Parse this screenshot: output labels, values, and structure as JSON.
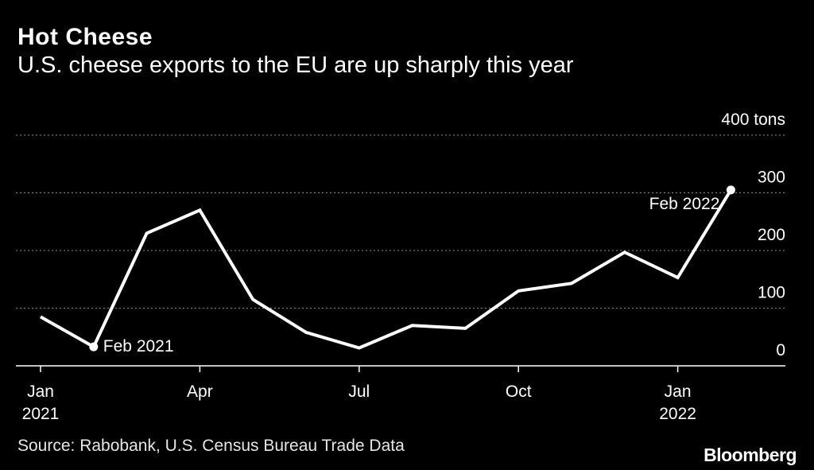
{
  "header": {
    "title": "Hot Cheese",
    "subtitle": "U.S. cheese exports to the EU are up sharply this year"
  },
  "footer": {
    "source": "Source: Rabobank, U.S. Census Bureau Trade Data",
    "brand": "Bloomberg"
  },
  "colors": {
    "background": "#000000",
    "line": "#ffffff",
    "grid": "#8c8c8c"
  },
  "chart_data": {
    "type": "line",
    "title": "Hot Cheese",
    "subtitle": "U.S. cheese exports to the EU are up sharply this year",
    "xlabel": "",
    "ylabel": "",
    "unit_label": "400 tons",
    "ylim": [
      0,
      400
    ],
    "yticks": [
      0,
      100,
      200,
      300,
      400
    ],
    "ytick_labels": [
      "0",
      "100",
      "200",
      "300",
      "400 tons"
    ],
    "xtick_labels": [
      {
        "index": 0,
        "line1": "Jan",
        "line2": "2021"
      },
      {
        "index": 3,
        "line1": "Apr",
        "line2": ""
      },
      {
        "index": 6,
        "line1": "Jul",
        "line2": ""
      },
      {
        "index": 9,
        "line1": "Oct",
        "line2": ""
      },
      {
        "index": 12,
        "line1": "Jan",
        "line2": "2022"
      }
    ],
    "series": [
      {
        "name": "U.S. cheese exports to the EU",
        "x": [
          "Jan 2021",
          "Feb 2021",
          "Mar 2021",
          "Apr 2021",
          "May 2021",
          "Jun 2021",
          "Jul 2021",
          "Aug 2021",
          "Sep 2021",
          "Oct 2021",
          "Nov 2021",
          "Dec 2021",
          "Jan 2022",
          "Feb 2022"
        ],
        "values": [
          85,
          33,
          230,
          270,
          115,
          58,
          31,
          70,
          65,
          130,
          143,
          197,
          153,
          305
        ]
      }
    ],
    "annotations": [
      {
        "index": 1,
        "label": "Feb 2021",
        "anchor": "right"
      },
      {
        "index": 13,
        "label": "Feb 2022",
        "anchor": "left"
      }
    ],
    "grid": true
  }
}
